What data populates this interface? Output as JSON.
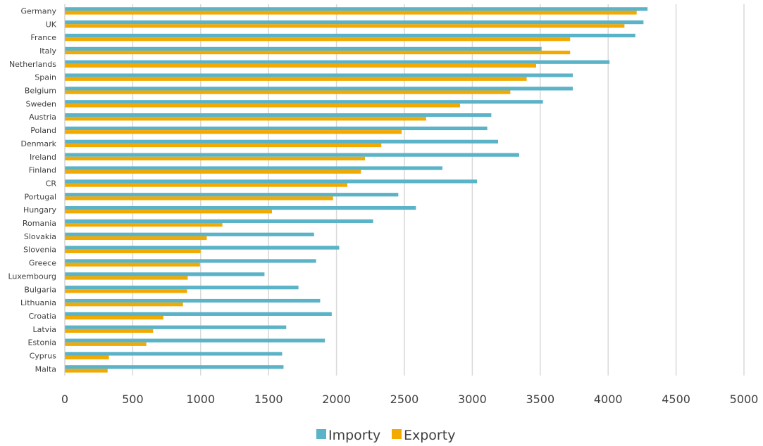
{
  "chart_data": {
    "type": "bar",
    "orientation": "horizontal",
    "categories": [
      "Germany",
      "UK",
      "France",
      "Italy",
      "Netherlands",
      "Spain",
      "Belgium",
      "Sweden",
      "Austria",
      "Poland",
      "Denmark",
      "Ireland",
      "Finland",
      "CR",
      "Portugal",
      "Hungary",
      "Romania",
      "Slovakia",
      "Slovenia",
      "Greece",
      "Luxembourg",
      "Bulgaria",
      "Lithuania",
      "Croatia",
      "Latvia",
      "Estonia",
      "Cyprus",
      "Malta"
    ],
    "series": [
      {
        "name": "Importy",
        "color": "#5BB3C8",
        "values": [
          4290,
          4260,
          4200,
          3510,
          4010,
          3740,
          3740,
          3520,
          3140,
          3110,
          3190,
          3345,
          2780,
          3035,
          2455,
          2585,
          2270,
          1835,
          2020,
          1850,
          1470,
          1720,
          1880,
          1965,
          1630,
          1915,
          1600,
          1610
        ]
      },
      {
        "name": "Exporty",
        "color": "#F2A900",
        "values": [
          4210,
          4120,
          3720,
          3720,
          3470,
          3400,
          3280,
          2910,
          2660,
          2480,
          2330,
          2210,
          2180,
          2080,
          1975,
          1525,
          1160,
          1045,
          1000,
          995,
          905,
          900,
          870,
          725,
          650,
          600,
          325,
          315
        ]
      }
    ],
    "xlim": [
      0,
      5000
    ],
    "xticks": [
      "0",
      "500",
      "1000",
      "1500",
      "2000",
      "2500",
      "3000",
      "3500",
      "4000",
      "4500",
      "5000"
    ],
    "grid": true,
    "legend": {
      "position": "bottom",
      "entries": [
        "Importy",
        "Exporty"
      ]
    },
    "title": "",
    "xlabel": "",
    "ylabel": ""
  }
}
